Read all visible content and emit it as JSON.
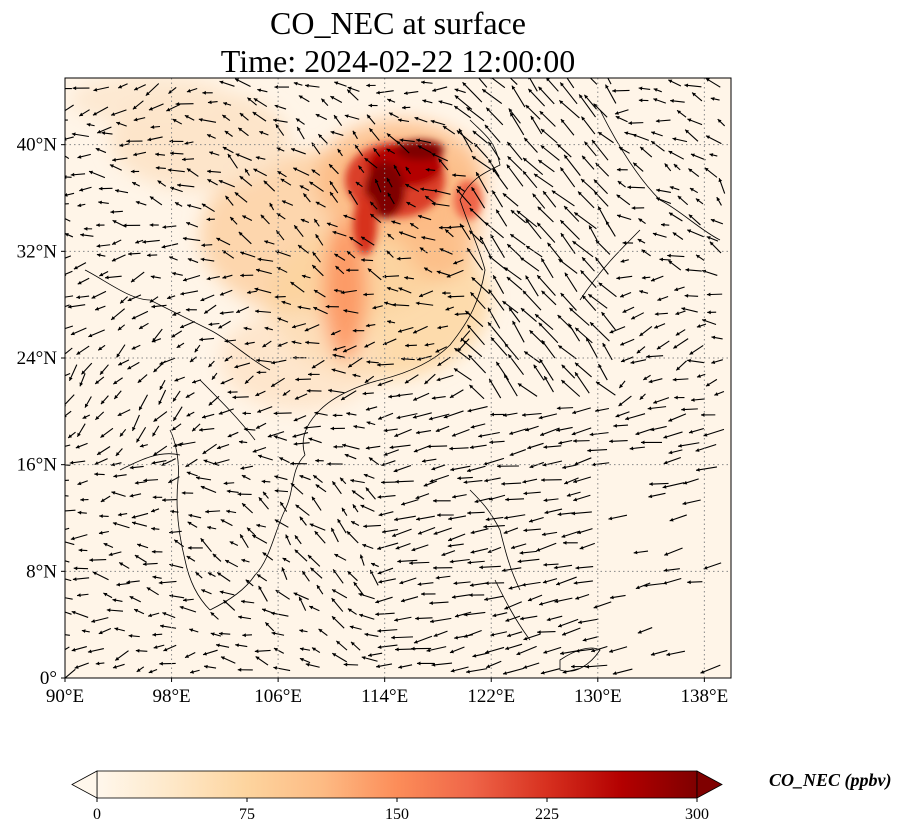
{
  "title": {
    "line1": "CO_NEC at surface",
    "line2": "Time: 2024-02-22 12:00:00"
  },
  "map": {
    "lon_range": [
      90,
      140
    ],
    "lat_range": [
      0,
      45
    ],
    "lon_ticks": [
      "90°E",
      "98°E",
      "106°E",
      "114°E",
      "122°E",
      "130°E",
      "138°E"
    ],
    "lon_tick_values": [
      90,
      98,
      106,
      114,
      122,
      130,
      138
    ],
    "lat_ticks": [
      "0°",
      "8°N",
      "16°N",
      "24°N",
      "32°N",
      "40°N"
    ],
    "lat_tick_values": [
      0,
      8,
      16,
      24,
      32,
      40
    ],
    "gridlines": true,
    "gridline_style": "dotted",
    "overlay": "wind vectors (black arrows)"
  },
  "colorbar": {
    "label": "CO_NEC (ppbv)",
    "ticks": [
      "0",
      "75",
      "150",
      "225",
      "300"
    ],
    "tick_values": [
      0,
      75,
      150,
      225,
      300
    ],
    "range": [
      0,
      300
    ],
    "colormap": "OrRd",
    "extend": "both",
    "colors": [
      "#fff7ec",
      "#fee8c8",
      "#fdd49e",
      "#fdbb84",
      "#fc8d59",
      "#ef6548",
      "#d7301f",
      "#b30000",
      "#7f0000"
    ]
  }
}
